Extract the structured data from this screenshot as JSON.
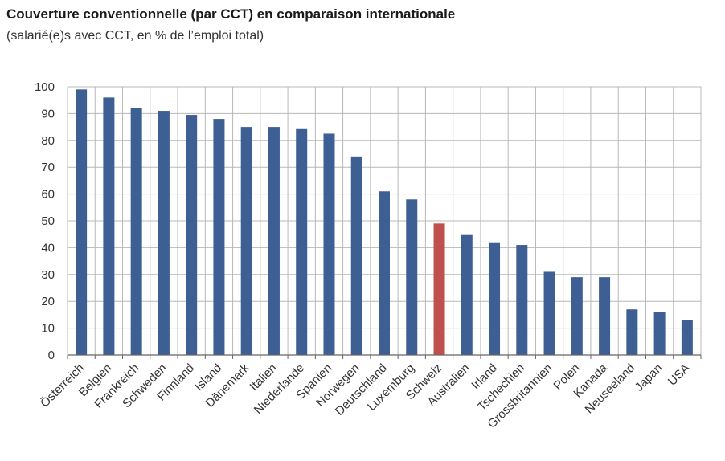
{
  "title": "Couverture conventionnelle (par CCT) en comparaison internationale",
  "subtitle": "(salarié(e)s avec CCT, en % de l’emploi total)",
  "chart_data": {
    "type": "bar",
    "title": "Couverture conventionnelle (par CCT) en comparaison internationale",
    "subtitle": "(salarié(e)s avec CCT, en % de l’emploi total)",
    "xlabel": "",
    "ylabel": "",
    "ylim": [
      0,
      100
    ],
    "yticks": [
      0,
      10,
      20,
      30,
      40,
      50,
      60,
      70,
      80,
      90,
      100
    ],
    "grid": true,
    "categories": [
      "Österreich",
      "Belgien",
      "Frankreich",
      "Schweden",
      "Finnland",
      "Island",
      "Dänemark",
      "Italien",
      "Niederlande",
      "Spanien",
      "Norwegen",
      "Deutschland",
      "Luxemburg",
      "Schweiz",
      "Australien",
      "Irland",
      "Tschechien",
      "Grossbritannien",
      "Polen",
      "Kanada",
      "Neuseeland",
      "Japan",
      "USA"
    ],
    "values": [
      99,
      96,
      92,
      91,
      89.5,
      88,
      85,
      85,
      84.5,
      82.5,
      74,
      61,
      58,
      49,
      45,
      42,
      41,
      31,
      29,
      29,
      17,
      16,
      13
    ],
    "highlight": "Schweiz",
    "colors": {
      "bar": "#3d5f94",
      "highlight": "#c0504d",
      "grid": "#b8b8b8",
      "axis": "#666666"
    }
  }
}
